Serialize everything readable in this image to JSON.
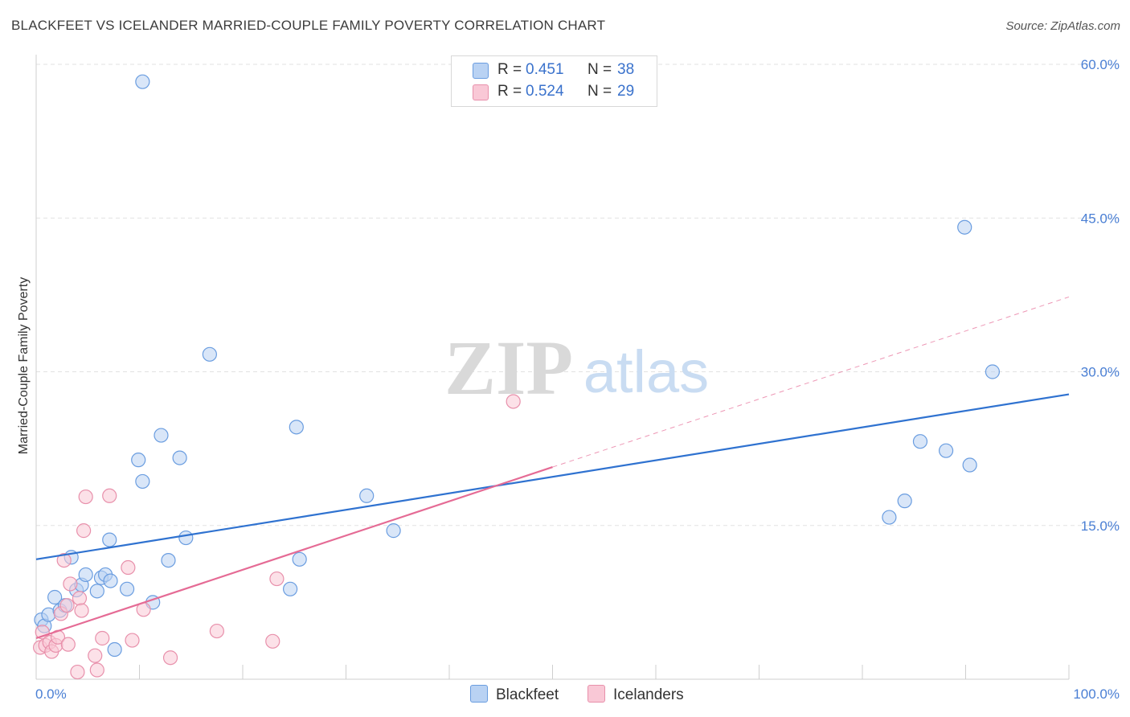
{
  "title": "BLACKFEET VS ICELANDER MARRIED-COUPLE FAMILY POVERTY CORRELATION CHART",
  "source": "Source: ZipAtlas.com",
  "watermark": {
    "zip": "ZIP",
    "atlas": "atlas"
  },
  "legend": {
    "rows": [
      {
        "r_label": "R =",
        "r_value": "0.451",
        "n_label": "N =",
        "n_value": "38",
        "fill": "#b9d2f3",
        "stroke": "#6a9de0"
      },
      {
        "r_label": "R =",
        "r_value": "0.524",
        "n_label": "N =",
        "n_value": "29",
        "fill": "#f9c8d6",
        "stroke": "#e890ab"
      }
    ]
  },
  "bottom_legend": {
    "blackfeet": "Blackfeet",
    "icelanders": "Icelanders"
  },
  "chart_data": {
    "type": "scatter",
    "xlabel": "",
    "ylabel": "Married-Couple Family Poverty",
    "xlim": [
      0,
      100
    ],
    "ylim": [
      0,
      60
    ],
    "x_tick_labels": [
      "0.0%",
      "100.0%"
    ],
    "y_tick_labels": [
      "15.0%",
      "30.0%",
      "45.0%",
      "60.0%"
    ],
    "y_ticks": [
      15,
      30,
      45,
      60
    ],
    "grid": true,
    "legend_position": "top-center",
    "series": [
      {
        "name": "Blackfeet",
        "color": "#6a9de0",
        "fill": "#b9d2f3",
        "line_color": "#2f72d0",
        "trend": {
          "x": [
            0,
            100
          ],
          "y": [
            11.7,
            27.8
          ]
        },
        "points": [
          [
            0.5,
            5.8
          ],
          [
            0.8,
            5.2
          ],
          [
            1.2,
            6.3
          ],
          [
            1.8,
            8.0
          ],
          [
            2.3,
            6.7
          ],
          [
            2.8,
            7.2
          ],
          [
            3.4,
            11.9
          ],
          [
            3.9,
            8.7
          ],
          [
            4.4,
            9.2
          ],
          [
            4.8,
            10.2
          ],
          [
            5.9,
            8.6
          ],
          [
            6.3,
            9.9
          ],
          [
            6.7,
            10.2
          ],
          [
            7.2,
            9.6
          ],
          [
            7.6,
            2.9
          ],
          [
            7.1,
            13.6
          ],
          [
            8.8,
            8.8
          ],
          [
            10.3,
            19.3
          ],
          [
            9.9,
            21.4
          ],
          [
            12.1,
            23.8
          ],
          [
            12.8,
            11.6
          ],
          [
            13.9,
            21.6
          ],
          [
            11.3,
            7.5
          ],
          [
            14.5,
            13.8
          ],
          [
            16.8,
            31.7
          ],
          [
            25.2,
            24.6
          ],
          [
            24.6,
            8.8
          ],
          [
            25.5,
            11.7
          ],
          [
            32.0,
            17.9
          ],
          [
            34.6,
            14.5
          ],
          [
            10.3,
            58.3
          ],
          [
            82.6,
            15.8
          ],
          [
            84.1,
            17.4
          ],
          [
            85.6,
            23.2
          ],
          [
            88.1,
            22.3
          ],
          [
            90.4,
            20.9
          ],
          [
            89.9,
            44.1
          ],
          [
            92.6,
            30.0
          ]
        ]
      },
      {
        "name": "Icelanders",
        "color": "#e890ab",
        "fill": "#f9c8d6",
        "line_color": "#e56b95",
        "trend": {
          "x": [
            0,
            50
          ],
          "y": [
            4.0,
            20.7
          ]
        },
        "trend_extension": {
          "x": [
            50,
            100
          ],
          "y": [
            20.7,
            37.3
          ]
        },
        "points": [
          [
            0.4,
            3.1
          ],
          [
            0.6,
            4.6
          ],
          [
            0.9,
            3.3
          ],
          [
            1.3,
            3.6
          ],
          [
            1.5,
            2.7
          ],
          [
            1.9,
            3.3
          ],
          [
            2.1,
            4.1
          ],
          [
            2.4,
            6.4
          ],
          [
            2.7,
            11.6
          ],
          [
            3.0,
            7.2
          ],
          [
            3.1,
            3.4
          ],
          [
            3.3,
            9.3
          ],
          [
            4.0,
            0.7
          ],
          [
            4.2,
            7.9
          ],
          [
            4.4,
            6.7
          ],
          [
            4.6,
            14.5
          ],
          [
            4.8,
            17.8
          ],
          [
            5.7,
            2.3
          ],
          [
            5.9,
            0.9
          ],
          [
            6.4,
            4.0
          ],
          [
            7.1,
            17.9
          ],
          [
            8.9,
            10.9
          ],
          [
            9.3,
            3.8
          ],
          [
            10.4,
            6.8
          ],
          [
            13.0,
            2.1
          ],
          [
            17.5,
            4.7
          ],
          [
            22.9,
            3.7
          ],
          [
            23.3,
            9.8
          ],
          [
            46.2,
            27.1
          ]
        ]
      }
    ]
  }
}
